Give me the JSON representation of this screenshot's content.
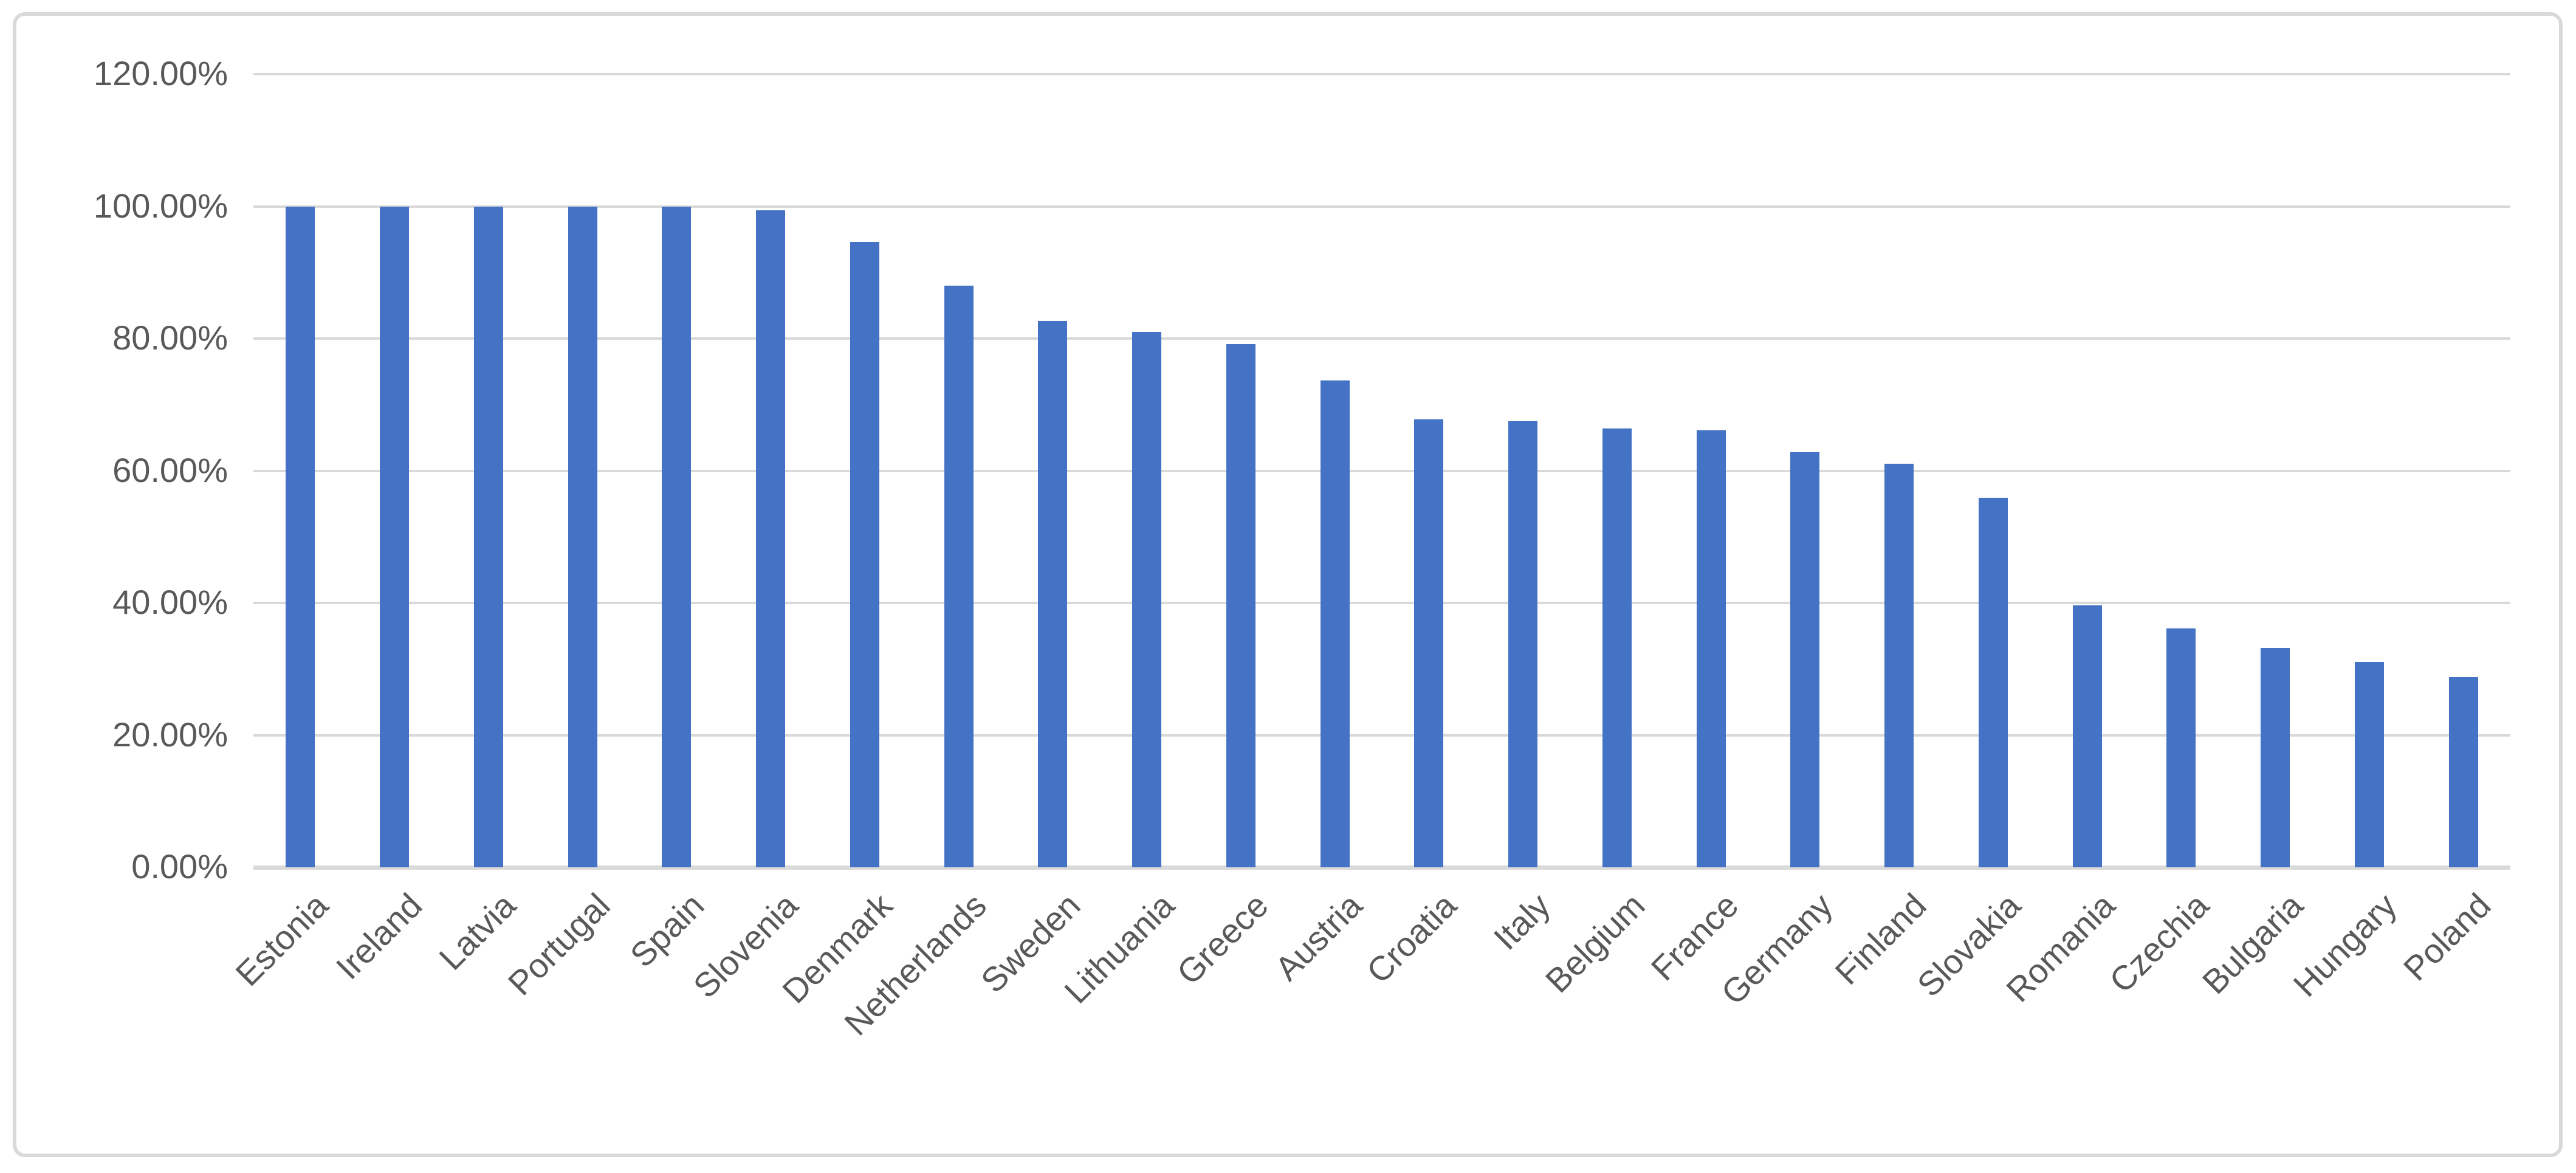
{
  "chart_data": {
    "type": "bar",
    "title": "",
    "xlabel": "",
    "ylabel": "",
    "categories": [
      "Estonia",
      "Ireland",
      "Latvia",
      "Portugal",
      "Spain",
      "Slovenia",
      "Denmark",
      "Netherlands",
      "Sweden",
      "Lithuania",
      "Greece",
      "Austria",
      "Croatia",
      "Italy",
      "Belgium",
      "France",
      "Germany",
      "Finland",
      "Slovakia",
      "Romania",
      "Czechia",
      "Bulgaria",
      "Hungary",
      "Poland"
    ],
    "values": [
      100.0,
      100.0,
      100.0,
      100.0,
      100.0,
      99.4,
      94.6,
      88.0,
      82.7,
      81.0,
      79.2,
      73.7,
      67.8,
      67.5,
      66.4,
      66.1,
      62.8,
      61.1,
      55.9,
      39.6,
      36.1,
      33.2,
      31.1,
      28.8
    ],
    "ytick_labels": [
      "0.00%",
      "20.00%",
      "40.00%",
      "60.00%",
      "80.00%",
      "100.00%",
      "120.00%"
    ],
    "ytick_values": [
      0,
      20,
      40,
      60,
      80,
      100,
      120
    ],
    "ylim": [
      0,
      120
    ],
    "grid": true,
    "legend": "none",
    "bar_color": "#4472c4",
    "gridline_color": "#d9d9d9",
    "axis_text_color": "#595959",
    "frame_border_color": "#d9d9d9"
  }
}
